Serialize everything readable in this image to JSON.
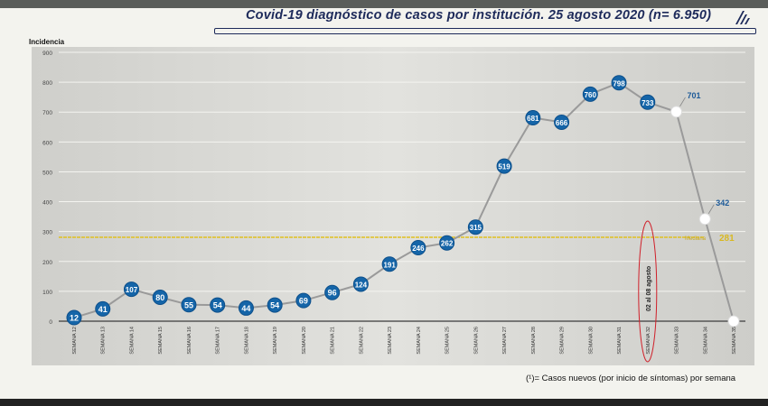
{
  "header": {
    "title": "Covid-19 diagnóstico de casos por institución. 25 agosto 2020 (n= 6.950)"
  },
  "footnote": "(¹)= Casos nuevos (por inicio de síntomas) por semana",
  "chart_data": {
    "type": "line",
    "title": "Covid-19 diagnóstico de casos por institución. 25 agosto 2020 (n= 6.950)",
    "ylabel": "Incidencia",
    "xlabel": "",
    "ylim": [
      0,
      900
    ],
    "yticks": [
      0,
      100,
      200,
      300,
      400,
      500,
      600,
      700,
      800,
      900
    ],
    "grid": true,
    "categories": [
      "SEMANA 12",
      "SEMANA 13",
      "SEMANA 14",
      "SEMANA 15",
      "SEMANA 16",
      "SEMANA 17",
      "SEMANA 18",
      "SEMANA 19",
      "SEMANA 20",
      "SEMANA 21",
      "SEMANA 22",
      "SEMANA 23",
      "SEMANA 24",
      "SEMANA 25",
      "SEMANA 26",
      "SEMANA 27",
      "SEMANA 28",
      "SEMANA 29",
      "SEMANA 30",
      "SEMANA 31",
      "SEMANA 32",
      "SEMANA 33",
      "SEMANA 34",
      "SEMANA 35"
    ],
    "values": [
      12,
      41,
      107,
      80,
      55,
      54,
      44,
      54,
      69,
      96,
      124,
      191,
      246,
      262,
      315,
      519,
      681,
      666,
      760,
      798,
      733,
      701,
      342,
      0
    ],
    "value_labels": [
      "12",
      "41",
      "107",
      "80",
      "55",
      "54",
      "44",
      "54",
      "69",
      "96",
      "124",
      "191",
      "246",
      "262",
      "315",
      "519",
      "681",
      "666",
      "760",
      "798",
      "733",
      "701",
      "342",
      ""
    ],
    "incomplete_from_index": 21,
    "median": {
      "label": "Mediana",
      "value": 281
    },
    "annotation": {
      "text": "02 al 08 agosto",
      "category": "SEMANA 32"
    },
    "colors": {
      "marker": "#1565a8",
      "incomplete_marker": "#ffffff",
      "line": "#9a9a9a",
      "median": "#e0c020",
      "annotation": "#d0202a",
      "title": "#1d2a5a"
    }
  }
}
